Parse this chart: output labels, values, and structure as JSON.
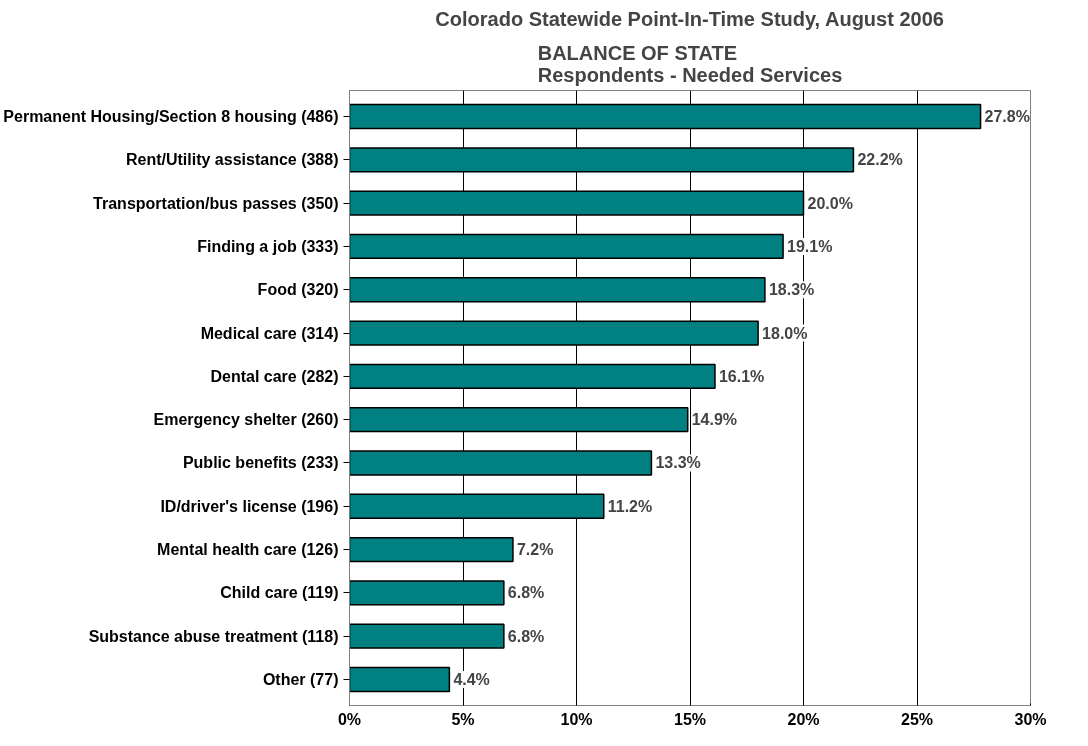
{
  "chart_data": {
    "type": "bar",
    "orientation": "horizontal",
    "title": "Colorado Statewide Point-In-Time Study, August 2006",
    "subtitle": "BALANCE OF STATE\nRespondents - Needed Services",
    "categories": [
      "Permanent Housing/Section 8 housing (486)",
      "Rent/Utility assistance (388)",
      "Transportation/bus passes (350)",
      "Finding a job (333)",
      "Food (320)",
      "Medical care (314)",
      "Dental care (282)",
      "Emergency shelter (260)",
      "Public benefits (233)",
      "ID/driver's license (196)",
      "Mental health care (126)",
      "Child care (119)",
      "Substance abuse treatment (118)",
      "Other (77)"
    ],
    "values": [
      27.8,
      22.2,
      20.0,
      19.1,
      18.3,
      18.0,
      16.1,
      14.9,
      13.3,
      11.2,
      7.2,
      6.8,
      6.8,
      4.4
    ],
    "value_labels": [
      "27.8%",
      "22.2%",
      "20.0%",
      "19.1%",
      "18.3%",
      "18.0%",
      "16.1%",
      "14.9%",
      "13.3%",
      "11.2%",
      "7.2%",
      "6.8%",
      "6.8%",
      "4.4%"
    ],
    "color": "#008080",
    "xlim": [
      0,
      30
    ],
    "xticks": [
      {
        "value": 0,
        "label": "0%"
      },
      {
        "value": 5,
        "label": "5%"
      },
      {
        "value": 10,
        "label": "10%"
      },
      {
        "value": 15,
        "label": "15%"
      },
      {
        "value": 20,
        "label": "20%"
      },
      {
        "value": 25,
        "label": "25%"
      },
      {
        "value": 30,
        "label": "30%"
      }
    ],
    "grid": "x"
  }
}
